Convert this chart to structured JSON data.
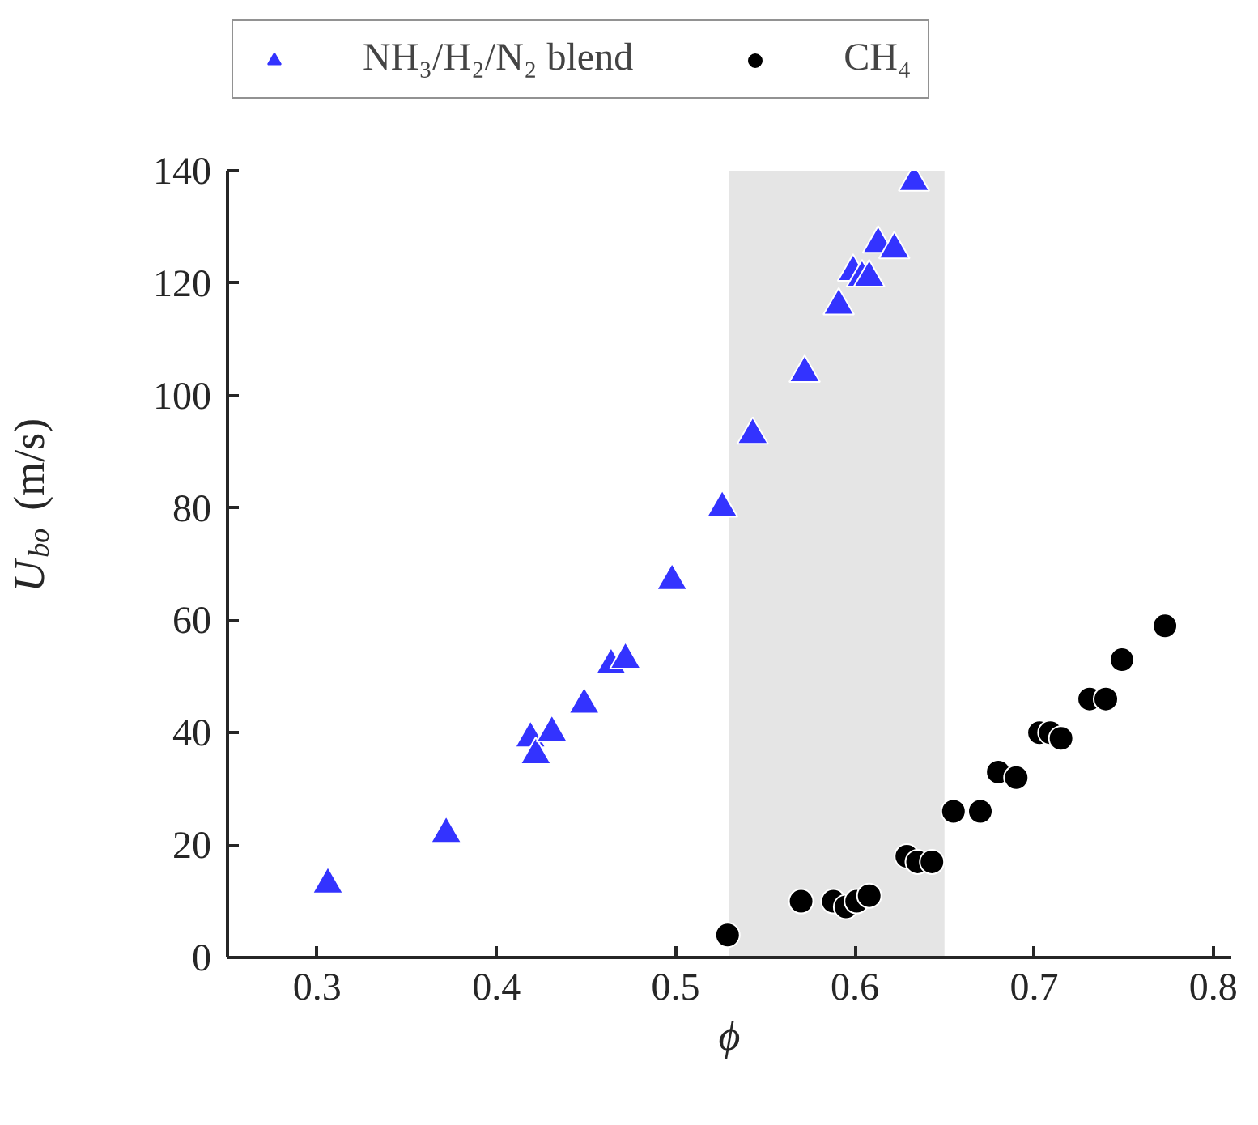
{
  "chart_data": {
    "type": "scatter",
    "xlabel": "ϕ",
    "ylabel": "U$_{bo}$ (m/s)",
    "xlim": [
      0.25,
      0.81
    ],
    "ylim": [
      0,
      140
    ],
    "xticks": [
      0.3,
      0.4,
      0.5,
      0.6,
      0.7,
      0.8
    ],
    "yticks": [
      0,
      20,
      40,
      60,
      80,
      100,
      120,
      140
    ],
    "grid": false,
    "legend": "top",
    "bands": [
      {
        "axis": "x",
        "from": 0.53,
        "to": 0.65,
        "color": "#e5e5e5"
      }
    ],
    "series": [
      {
        "name": "NH₃/H₂/N₂ blend",
        "color": "#3333ff",
        "marker": "triangle",
        "x": [
          0.306,
          0.372,
          0.419,
          0.422,
          0.431,
          0.449,
          0.464,
          0.472,
          0.498,
          0.526,
          0.543,
          0.572,
          0.591,
          0.599,
          0.604,
          0.608,
          0.613,
          0.622,
          0.633
        ],
        "values": [
          13,
          22,
          39,
          36,
          40,
          45,
          52,
          53,
          67,
          80,
          93,
          104,
          116,
          122,
          121,
          121,
          127,
          126,
          138
        ]
      },
      {
        "name": "CH₄",
        "color": "#000000",
        "marker": "circle",
        "x": [
          0.529,
          0.57,
          0.588,
          0.595,
          0.601,
          0.608,
          0.629,
          0.635,
          0.643,
          0.655,
          0.67,
          0.68,
          0.69,
          0.703,
          0.709,
          0.715,
          0.731,
          0.74,
          0.749,
          0.773
        ],
        "values": [
          4,
          10,
          10,
          9,
          10,
          11,
          18,
          17,
          17,
          26,
          26,
          33,
          32,
          40,
          40,
          39,
          46,
          46,
          53,
          59
        ]
      }
    ]
  }
}
